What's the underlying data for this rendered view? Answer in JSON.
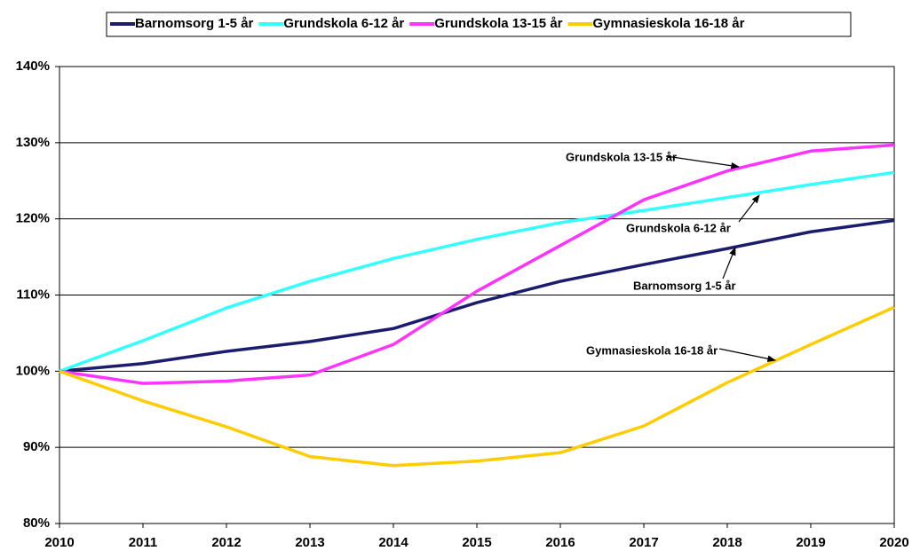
{
  "chart_data": {
    "type": "line",
    "x": [
      2010,
      2011,
      2012,
      2013,
      2014,
      2015,
      2016,
      2017,
      2018,
      2019,
      2020
    ],
    "xlim": [
      2010,
      2020
    ],
    "xticks": [
      2010,
      2011,
      2012,
      2013,
      2014,
      2015,
      2016,
      2017,
      2018,
      2019,
      2020
    ],
    "ylim": [
      80,
      140
    ],
    "yticks": [
      {
        "value": 80,
        "label": "80%"
      },
      {
        "value": 90,
        "label": "90%"
      },
      {
        "value": 100,
        "label": "100%"
      },
      {
        "value": 110,
        "label": "110%"
      },
      {
        "value": 120,
        "label": "120%"
      },
      {
        "value": 130,
        "label": "130%"
      },
      {
        "value": 140,
        "label": "140%"
      }
    ],
    "grid": true,
    "legend": "top",
    "series": [
      {
        "name": "Barnomsorg 1-5 år",
        "color": "#1c1c6e",
        "values": [
          100,
          101,
          102.6,
          103.9,
          105.6,
          109,
          111.8,
          114,
          116.1,
          118.3,
          119.8
        ]
      },
      {
        "name": "Grundskola 6-12 år",
        "color": "#33ffff",
        "values": [
          100,
          104,
          108.3,
          111.8,
          114.8,
          117.3,
          119.5,
          121.1,
          122.8,
          124.5,
          126.1
        ]
      },
      {
        "name": "Grundskola 13-15 år",
        "color": "#ff33ff",
        "values": [
          100,
          98.4,
          98.7,
          99.5,
          103.5,
          110.5,
          116.5,
          122.5,
          126.3,
          128.9,
          129.7
        ]
      },
      {
        "name": "Gymnasieskola 16-18 år",
        "color": "#ffcc00",
        "values": [
          100,
          96.1,
          92.7,
          88.8,
          87.6,
          88.2,
          89.3,
          92.8,
          98.5,
          103.5,
          108.4
        ]
      }
    ],
    "annotations": [
      "Grundskola 13-15 år",
      "Grundskola 6-12 år",
      "Barnomsorg 1-5 år",
      "Gymnasieskola 16-18 år"
    ]
  }
}
